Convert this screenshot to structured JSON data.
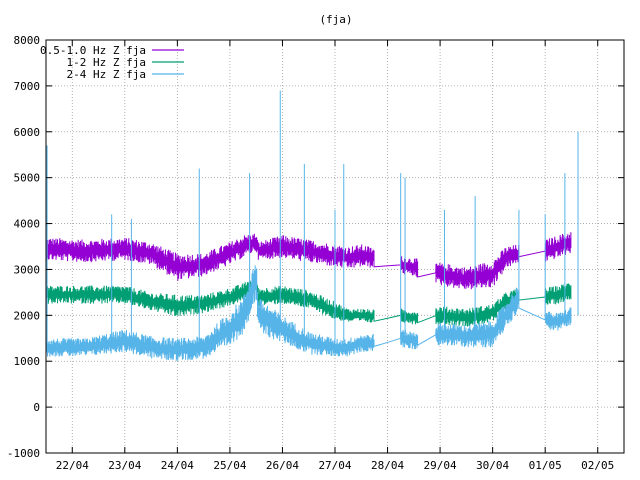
{
  "chart_data": {
    "type": "line",
    "title": "(fja)",
    "xlabel": "",
    "ylabel": "",
    "ylim": [
      -1000,
      8000
    ],
    "y_ticks": [
      -1000,
      0,
      1000,
      2000,
      3000,
      4000,
      5000,
      6000,
      7000,
      8000
    ],
    "x_ticks": [
      "22/04",
      "23/04",
      "24/04",
      "25/04",
      "26/04",
      "27/04",
      "28/04",
      "29/04",
      "30/04",
      "01/05",
      "02/05"
    ],
    "xlim": [
      "21/04 12:00",
      "02/05 12:00"
    ],
    "grid": true,
    "legend_position": "top-left",
    "colors": {
      "0.5-1.0 Hz Z fja": "#9400d3",
      "1-2 Hz Z fja": "#009e73",
      "2-4 Hz Z fja": "#56b4e9"
    },
    "series": [
      {
        "name": "0.5-1.0 Hz Z fja",
        "color": "#9400d3",
        "band": [
          [
            "21/04 12:00",
            3450,
            250
          ],
          [
            "22/04 06:00",
            3400,
            250
          ],
          [
            "23/04 00:00",
            3450,
            250
          ],
          [
            "23/04 12:00",
            3350,
            250
          ],
          [
            "24/04 00:00",
            3050,
            300
          ],
          [
            "24/04 12:00",
            3100,
            250
          ],
          [
            "25/04 00:00",
            3350,
            250
          ],
          [
            "25/04 06:00",
            3500,
            250
          ],
          [
            "25/04 12:00",
            3600,
            200
          ],
          [
            "25/04 13:00",
            3400,
            200
          ],
          [
            "26/04 00:00",
            3500,
            250
          ],
          [
            "26/04 12:00",
            3400,
            250
          ],
          [
            "27/04 00:00",
            3300,
            250
          ],
          [
            "27/04 06:00",
            3250,
            250
          ],
          [
            "27/04 12:00",
            3300,
            250
          ],
          [
            "28/04 00:00",
            3200,
            200
          ],
          [
            "28/04 06:00",
            3100,
            200
          ],
          [
            "28/04 12:00",
            3050,
            200
          ],
          [
            "29/04 00:00",
            2900,
            250
          ],
          [
            "29/04 12:00",
            2800,
            250
          ],
          [
            "30/04 00:00",
            2900,
            300
          ],
          [
            "30/04 06:00",
            3250,
            250
          ],
          [
            "30/04 12:00",
            3350,
            200
          ],
          [
            "01/05 00:00",
            3400,
            250
          ],
          [
            "01/05 06:00",
            3500,
            250
          ],
          [
            "01/05 12:00",
            3600,
            250
          ]
        ],
        "gaps": [
          [
            "27/04 18:00",
            "28/04 06:00"
          ],
          [
            "28/04 14:00",
            "28/04 22:00"
          ],
          [
            "30/04 12:00",
            "01/05 00:00"
          ]
        ]
      },
      {
        "name": "1-2 Hz Z fja",
        "color": "#009e73",
        "band": [
          [
            "21/04 12:00",
            2450,
            200
          ],
          [
            "22/04 06:00",
            2450,
            200
          ],
          [
            "23/04 00:00",
            2450,
            200
          ],
          [
            "23/04 12:00",
            2300,
            200
          ],
          [
            "24/04 00:00",
            2200,
            250
          ],
          [
            "24/04 12:00",
            2250,
            200
          ],
          [
            "25/04 00:00",
            2400,
            200
          ],
          [
            "25/04 06:00",
            2500,
            200
          ],
          [
            "25/04 12:00",
            2700,
            200
          ],
          [
            "25/04 13:00",
            2400,
            200
          ],
          [
            "26/04 00:00",
            2450,
            200
          ],
          [
            "26/04 12:00",
            2350,
            200
          ],
          [
            "27/04 00:00",
            2100,
            200
          ],
          [
            "27/04 06:00",
            2000,
            150
          ],
          [
            "27/04 12:00",
            2000,
            150
          ],
          [
            "28/04 00:00",
            1950,
            150
          ],
          [
            "28/04 06:00",
            2000,
            150
          ],
          [
            "28/04 12:00",
            1950,
            150
          ],
          [
            "29/04 00:00",
            2000,
            200
          ],
          [
            "29/04 12:00",
            1950,
            200
          ],
          [
            "30/04 00:00",
            2050,
            200
          ],
          [
            "30/04 06:00",
            2300,
            200
          ],
          [
            "30/04 12:00",
            2400,
            200
          ],
          [
            "01/05 00:00",
            2400,
            200
          ],
          [
            "01/05 06:00",
            2450,
            200
          ],
          [
            "01/05 12:00",
            2550,
            200
          ]
        ],
        "gaps": [
          [
            "27/04 18:00",
            "28/04 06:00"
          ],
          [
            "28/04 14:00",
            "28/04 22:00"
          ],
          [
            "30/04 12:00",
            "01/05 00:00"
          ]
        ]
      },
      {
        "name": "2-4 Hz Z fja",
        "color": "#56b4e9",
        "band": [
          [
            "21/04 12:00",
            1300,
            200
          ],
          [
            "22/04 06:00",
            1300,
            200
          ],
          [
            "23/04 00:00",
            1450,
            250
          ],
          [
            "23/04 12:00",
            1300,
            250
          ],
          [
            "24/04 00:00",
            1250,
            250
          ],
          [
            "24/04 12:00",
            1300,
            250
          ],
          [
            "25/04 00:00",
            1700,
            400
          ],
          [
            "25/04 06:00",
            2000,
            400
          ],
          [
            "25/04 12:00",
            2800,
            500
          ],
          [
            "25/04 13:00",
            2000,
            400
          ],
          [
            "26/04 00:00",
            1700,
            300
          ],
          [
            "26/04 12:00",
            1400,
            250
          ],
          [
            "27/04 00:00",
            1300,
            200
          ],
          [
            "27/04 06:00",
            1300,
            200
          ],
          [
            "27/04 12:00",
            1400,
            200
          ],
          [
            "28/04 00:00",
            1400,
            200
          ],
          [
            "28/04 06:00",
            1500,
            200
          ],
          [
            "28/04 12:00",
            1450,
            200
          ],
          [
            "29/04 00:00",
            1600,
            250
          ],
          [
            "29/04 12:00",
            1550,
            250
          ],
          [
            "30/04 00:00",
            1600,
            300
          ],
          [
            "30/04 06:00",
            2000,
            300
          ],
          [
            "30/04 12:00",
            2400,
            300
          ],
          [
            "01/05 00:00",
            1900,
            200
          ],
          [
            "01/05 06:00",
            1850,
            200
          ],
          [
            "01/05 12:00",
            2000,
            200
          ]
        ],
        "gaps": [
          [
            "27/04 18:00",
            "28/04 06:00"
          ],
          [
            "28/04 14:00",
            "28/04 22:00"
          ],
          [
            "30/04 12:00",
            "01/05 00:00"
          ]
        ],
        "spikes": [
          [
            "21/04 12:30",
            5700
          ],
          [
            "22/04 18:00",
            4200
          ],
          [
            "23/04 03:00",
            4100
          ],
          [
            "24/04 10:00",
            5200
          ],
          [
            "25/04 09:00",
            5100
          ],
          [
            "25/04 23:00",
            6900
          ],
          [
            "26/04 10:00",
            5300
          ],
          [
            "27/04 00:00",
            4300
          ],
          [
            "27/04 04:00",
            5300
          ],
          [
            "28/04 06:00",
            5100
          ],
          [
            "28/04 08:00",
            5000
          ],
          [
            "29/04 02:00",
            4300
          ],
          [
            "29/04 16:00",
            4600
          ],
          [
            "30/04 12:00",
            4300
          ],
          [
            "01/05 00:00",
            4200
          ],
          [
            "01/05 09:00",
            5100
          ],
          [
            "01/05 15:00",
            6000
          ]
        ]
      }
    ]
  }
}
